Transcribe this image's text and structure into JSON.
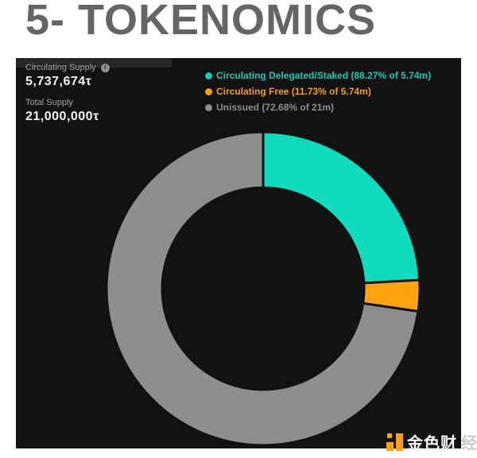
{
  "page": {
    "title": "5- TOKENOMICS",
    "title_color": "#656565",
    "background": "#ffffff"
  },
  "panel": {
    "background": "#121212"
  },
  "stats": {
    "circulating_supply_label": "Circulating Supply",
    "info_glyph": "i",
    "circulating_supply_value": "5,737,674τ",
    "total_supply_label": "Total Supply",
    "total_supply_value": "21,000,000τ"
  },
  "legend": [
    {
      "label": "Circulating Delegated/Staked (88.27% of 5.74m)",
      "color": "#16c9b4"
    },
    {
      "label": "Circulating Free (11.73% of 5.74m)",
      "color": "#f59d13"
    },
    {
      "label": "Unissued (72.68% of 21m)",
      "color": "#8d8d8d"
    }
  ],
  "chart_data": {
    "type": "pie",
    "donut": true,
    "title": "",
    "legend_position": "top-right",
    "start_angle_deg": 0,
    "direction": "clockwise",
    "segments": [
      {
        "label": "Circulating Delegated/Staked",
        "percent_label": "88.27% of 5.74m",
        "share_of_circle_pct": 24.12,
        "color": "#0edcbc"
      },
      {
        "label": "Circulating Free",
        "percent_label": "11.73% of 5.74m",
        "share_of_circle_pct": 3.2,
        "color": "#ffa30f"
      },
      {
        "label": "Unissued",
        "percent_label": "72.68% of 21m",
        "share_of_circle_pct": 72.68,
        "color": "#8e8e8e"
      }
    ]
  },
  "watermark": {
    "text_on_panel": "金色财",
    "text_off_panel": "经",
    "icon_color": "#f9a01b"
  }
}
